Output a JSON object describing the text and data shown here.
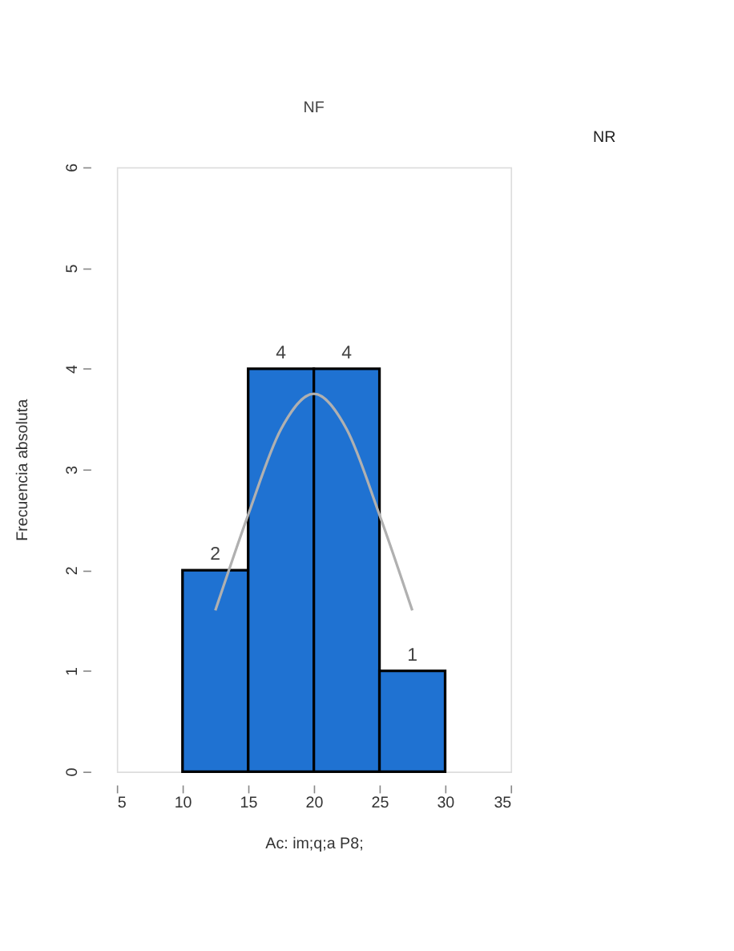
{
  "chart_data": {
    "type": "histogram",
    "title": "NF",
    "annotations": [
      "NR"
    ],
    "xlabel": "Ac: im;q;a P8;",
    "ylabel": "Frecuencia absoluta",
    "bins": [
      10,
      15,
      20,
      25,
      30
    ],
    "values": [
      2,
      4,
      4,
      1
    ],
    "color": "#1f72d2",
    "value_labels": [
      "2",
      "4",
      "4",
      "1"
    ],
    "series": [
      {
        "type": "line",
        "color": "#b0b0b0",
        "x": [
          12.5,
          15,
          17.5,
          20,
          22.5,
          25,
          27.5
        ],
        "values": [
          1.6,
          2.55,
          3.4,
          3.75,
          3.4,
          2.55,
          1.6
        ]
      }
    ],
    "xlim": [
      5,
      35
    ],
    "xticks": [
      5,
      10,
      15,
      20,
      25,
      30,
      35
    ],
    "ylim": [
      0,
      6
    ],
    "yticks": [
      0,
      1,
      2,
      3,
      4,
      5,
      6
    ],
    "grid": false
  }
}
